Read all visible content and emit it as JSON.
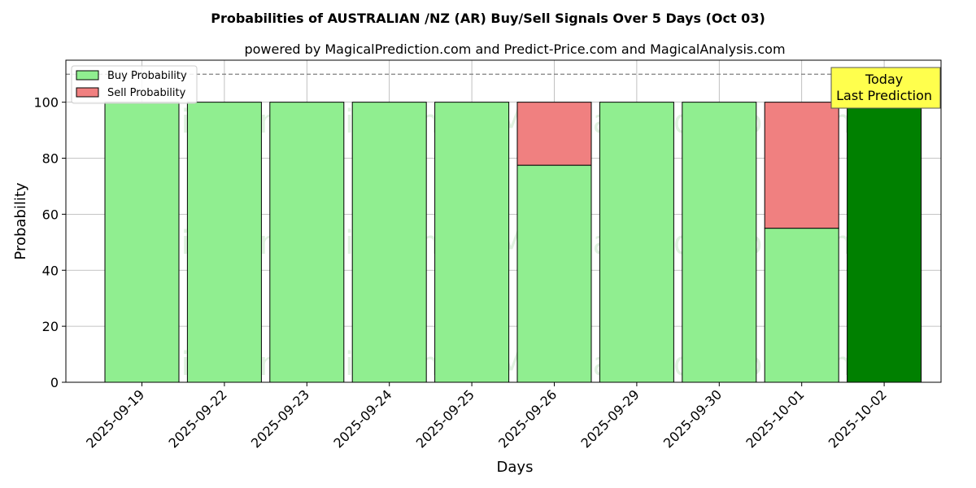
{
  "chart_data": {
    "type": "bar",
    "stacked": true,
    "title": "Probabilities of AUSTRALIAN /NZ (AR) Buy/Sell Signals Over 5 Days (Oct 03)",
    "subtitle": "powered by MagicalPrediction.com and Predict-Price.com and MagicalAnalysis.com",
    "xlabel": "Days",
    "ylabel": "Probability",
    "ylim": [
      0,
      115
    ],
    "yticks": [
      0,
      20,
      40,
      60,
      80,
      100
    ],
    "grid": true,
    "reference_line": 110,
    "legend_position": "top-left",
    "categories": [
      "2025-09-19",
      "2025-09-22",
      "2025-09-23",
      "2025-09-24",
      "2025-09-25",
      "2025-09-26",
      "2025-09-29",
      "2025-09-30",
      "2025-10-01",
      "2025-10-02"
    ],
    "series": [
      {
        "name": "Buy Probability",
        "color": "#90ee90",
        "values": [
          100,
          100,
          100,
          100,
          100,
          77.5,
          100,
          100,
          55,
          100
        ]
      },
      {
        "name": "Sell Probability",
        "color": "#f08080",
        "values": [
          0,
          0,
          0,
          0,
          0,
          22.5,
          0,
          0,
          45,
          0
        ]
      }
    ],
    "highlight": {
      "category": "2025-10-02",
      "color": "#008000"
    },
    "annotation": {
      "line1": "Today",
      "line2": "Last Prediction",
      "background": "#ffff4d"
    },
    "watermarks": [
      "MagicalAnalysis.com",
      "MagicalPrediction.com"
    ]
  }
}
